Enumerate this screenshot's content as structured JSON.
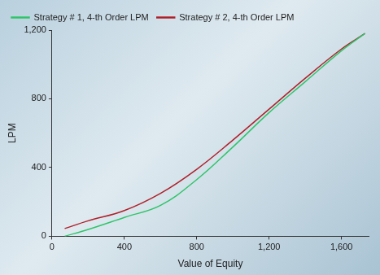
{
  "chart_data": {
    "type": "line",
    "x_label": "Value of Equity",
    "y_label": "LPM",
    "x": [
      70,
      200,
      400,
      600,
      800,
      1000,
      1200,
      1400,
      1600,
      1730
    ],
    "series": [
      {
        "name": "Strategy # 1, 4-th Order LPM",
        "color": "#2fc46a",
        "values": [
          0,
          40,
          110,
          180,
          330,
          520,
          720,
          900,
          1080,
          1180
        ]
      },
      {
        "name": "Strategy # 2, 4-th Order LPM",
        "color": "#b0202a",
        "values": [
          45,
          90,
          150,
          250,
          390,
          560,
          740,
          920,
          1090,
          1180
        ]
      }
    ],
    "xlim": [
      0,
      1750
    ],
    "xticks": [
      0,
      400,
      800,
      1200,
      1600
    ],
    "ylim": [
      0,
      1200
    ],
    "yticks": [
      0,
      400,
      800,
      1200
    ],
    "grid": false,
    "legend": "upper left"
  }
}
